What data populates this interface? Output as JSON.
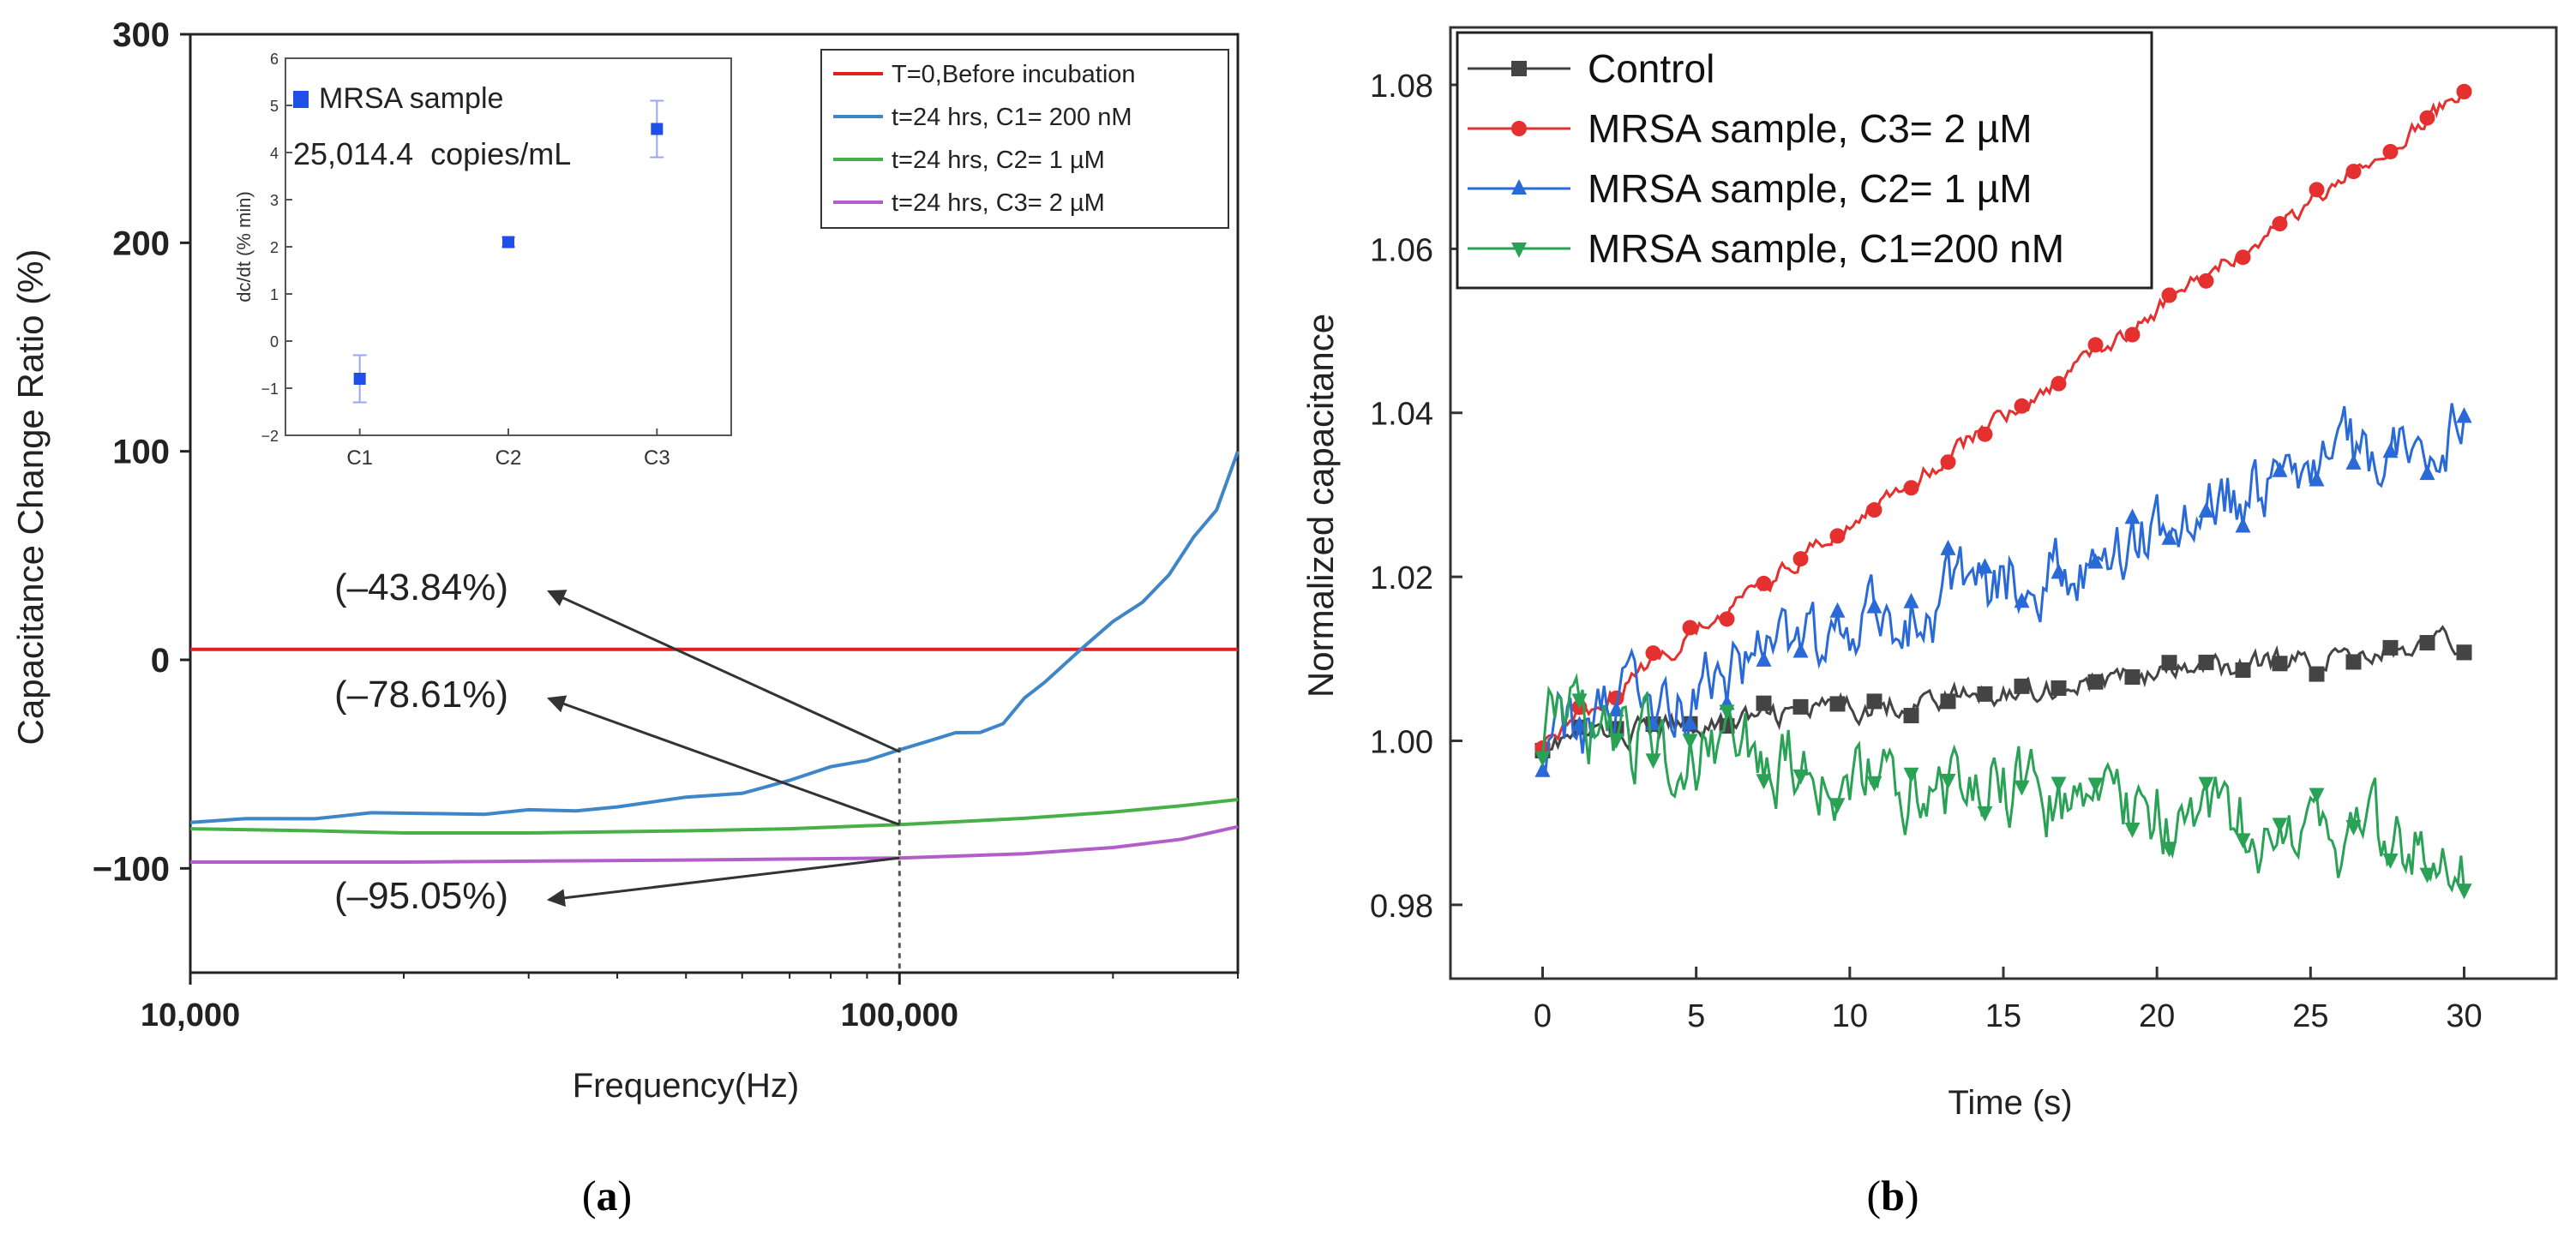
{
  "panels": {
    "a": {
      "caption_open": "(",
      "caption_letter": "a",
      "caption_close": ")"
    },
    "b": {
      "caption_open": "(",
      "caption_letter": "b",
      "caption_close": ")"
    }
  },
  "chart_data": [
    {
      "id": "a",
      "type": "line",
      "xscale": "log",
      "xlabel": "Frequency(Hz)",
      "ylabel": "Capacitance Change Ratio (%)",
      "xlim": [
        10000,
        300000
      ],
      "ylim": [
        -150,
        300
      ],
      "x_ticks": [
        {
          "value": 10000,
          "label": "10,000"
        },
        {
          "value": 100000,
          "label": "100,000"
        }
      ],
      "y_ticks": [
        {
          "value": 300,
          "label": "300"
        },
        {
          "value": 200,
          "label": "200"
        },
        {
          "value": 100,
          "label": "100"
        },
        {
          "value": 0,
          "label": "0"
        },
        {
          "value": -100,
          "label": "−100"
        }
      ],
      "legend_position": "top-right",
      "series": [
        {
          "name": "T=0,Before incubation",
          "color": "#e02020",
          "x": [
            10000,
            300000
          ],
          "y": [
            5,
            5
          ]
        },
        {
          "name": "t=24 hrs, C1= 200 nM",
          "color": "#3e86c8",
          "x": [
            10000,
            12000,
            15000,
            18000,
            22000,
            26000,
            30000,
            35000,
            40000,
            50000,
            60000,
            70000,
            80000,
            90000,
            100000,
            110000,
            120000,
            130000,
            140000,
            150000,
            160000,
            180000,
            200000,
            220000,
            240000,
            260000,
            280000,
            300000
          ],
          "y": [
            -78,
            -77,
            -75,
            -74,
            -74,
            -73,
            -73,
            -72,
            -70,
            -67,
            -63,
            -58,
            -52,
            -47,
            -44,
            -39,
            -34,
            -36,
            -30,
            -18,
            -12,
            6,
            18,
            27,
            42,
            58,
            72,
            100
          ]
        },
        {
          "name": "t=24 hrs, C2= 1 µM",
          "color": "#48b048",
          "x": [
            10000,
            15000,
            20000,
            30000,
            50000,
            70000,
            100000,
            150000,
            200000,
            250000,
            300000
          ],
          "y": [
            -81,
            -82,
            -83,
            -83,
            -82,
            -81,
            -79,
            -76,
            -73,
            -70,
            -67
          ]
        },
        {
          "name": "t=24 hrs, C3= 2 µM",
          "color": "#b25ec9",
          "x": [
            10000,
            20000,
            50000,
            100000,
            150000,
            200000,
            250000,
            300000
          ],
          "y": [
            -97,
            -97,
            -96,
            -95,
            -93,
            -90,
            -86,
            -80
          ]
        }
      ],
      "annotations": [
        {
          "text": "(–43.84%)",
          "target": [
            100000,
            -44
          ]
        },
        {
          "text": "(–78.61%)",
          "target": [
            100000,
            -79
          ]
        },
        {
          "text": "(–95.05%)",
          "target": [
            100000,
            -95
          ]
        }
      ],
      "marker_line_x": 100000,
      "inset": {
        "type": "scatter",
        "ylabel": "dc/dt (% min)",
        "legend": "MRSA sample",
        "subtitle": "25,014.4  copies/mL",
        "categories": [
          "C1",
          "C2",
          "C3"
        ],
        "values": [
          -0.8,
          2.1,
          4.5
        ],
        "errors": [
          0.5,
          0.1,
          0.6
        ],
        "ylim": [
          -2,
          6
        ],
        "y_ticks": [
          "6",
          "5",
          "4",
          "3",
          "2",
          "1",
          "0",
          "−1",
          "−2"
        ],
        "color": "#1f4ee8"
      }
    },
    {
      "id": "b",
      "type": "line",
      "xlabel": "Time (s)",
      "ylabel": "Normalized capacitance",
      "xlim": [
        -3,
        33
      ],
      "ylim": [
        0.971,
        1.087
      ],
      "x_ticks": [
        "0",
        "5",
        "10",
        "15",
        "20",
        "25",
        "30"
      ],
      "y_ticks": [
        "1.08",
        "1.06",
        "1.04",
        "1.02",
        "1.00",
        "0.98"
      ],
      "legend_position": "top-left",
      "series": [
        {
          "name": "Control",
          "color": "#444444",
          "marker": "square",
          "trend": [
            1.0,
            1.012
          ],
          "noise": 0.0012
        },
        {
          "name": "MRSA sample, C3= 2 µM",
          "color": "#e53030",
          "marker": "circle",
          "trend": [
            1.0,
            1.079
          ],
          "noise": 0.0009
        },
        {
          "name": "MRSA sample, C2= 1 µM",
          "color": "#2a6ad8",
          "marker": "triangle-up",
          "trend": [
            1.0,
            1.039
          ],
          "noise": 0.0038
        },
        {
          "name": "MRSA sample, C1=200 nM",
          "color": "#2aa256",
          "marker": "triangle-down",
          "trend": [
            1.002,
            0.986
          ],
          "noise": 0.0042
        }
      ]
    }
  ]
}
